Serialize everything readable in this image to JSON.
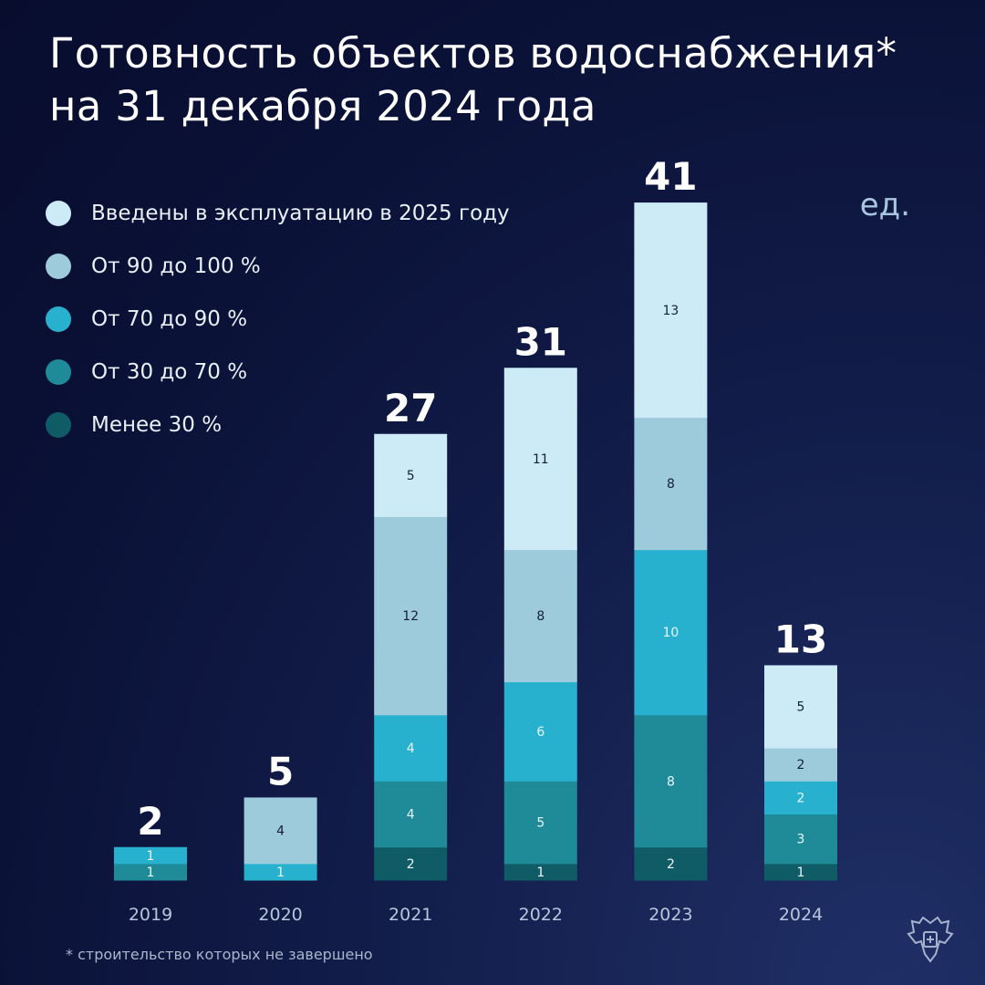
{
  "title_line1": "Готовность объектов водоснабжения*",
  "title_line2": "на 31 декабря 2024 года",
  "unit": "ед.",
  "footnote": "* строительство которых не завершено",
  "chart_data": {
    "type": "bar",
    "stacked": true,
    "categories": [
      "2019",
      "2020",
      "2021",
      "2022",
      "2023",
      "2024"
    ],
    "totals": [
      2,
      5,
      27,
      31,
      41,
      13
    ],
    "series": [
      {
        "name": "Менее 30 %",
        "color": "#0f5b66",
        "values": [
          0,
          0,
          2,
          1,
          2,
          1
        ]
      },
      {
        "name": "От 30 до 70 %",
        "color": "#1f8a98",
        "values": [
          1,
          0,
          4,
          5,
          8,
          3
        ]
      },
      {
        "name": "От 70 до 90 %",
        "color": "#28b1cf",
        "values": [
          1,
          1,
          4,
          6,
          10,
          2
        ]
      },
      {
        "name": "От 90 до 100 %",
        "color": "#9dcbdb",
        "values": [
          0,
          4,
          12,
          8,
          8,
          2
        ]
      },
      {
        "name": "Введены в эксплуатацию в 2025 году",
        "color": "#cdebf7",
        "values": [
          0,
          0,
          5,
          11,
          13,
          5
        ]
      }
    ],
    "legend_order": [
      4,
      3,
      2,
      1,
      0
    ],
    "legend_position": "top-left",
    "grid": false
  }
}
